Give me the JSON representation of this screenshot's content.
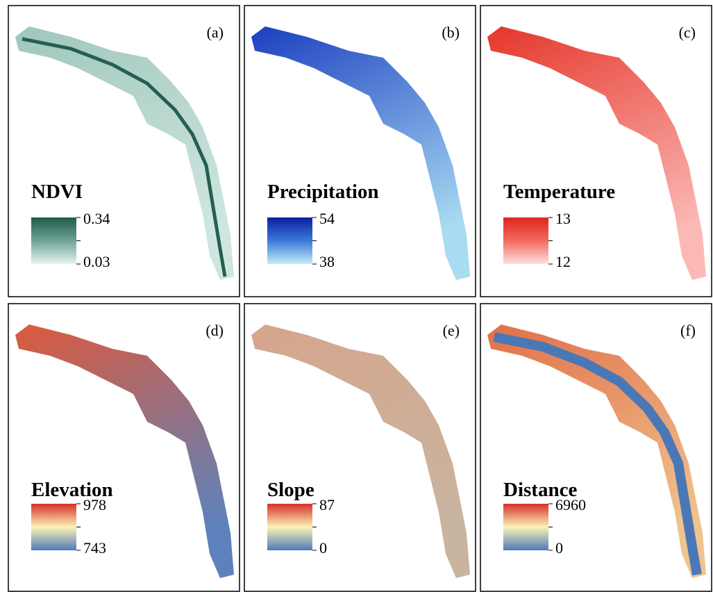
{
  "panels": [
    {
      "label": "(a)",
      "title": "NDVI",
      "legend": {
        "max": 0.34,
        "min": 0.03
      }
    },
    {
      "label": "(b)",
      "title": "Precipitation",
      "legend": {
        "max": 54,
        "min": 38
      }
    },
    {
      "label": "(c)",
      "title": "Temperature",
      "legend": {
        "max": 13,
        "min": 12
      }
    },
    {
      "label": "(d)",
      "title": "Elevation",
      "legend": {
        "max": 978,
        "min": 743
      }
    },
    {
      "label": "(e)",
      "title": "Slope",
      "legend": {
        "max": 87,
        "min": 0
      }
    },
    {
      "label": "(f)",
      "title": "Distance",
      "legend": {
        "max": 6960,
        "min": 0
      }
    }
  ]
}
